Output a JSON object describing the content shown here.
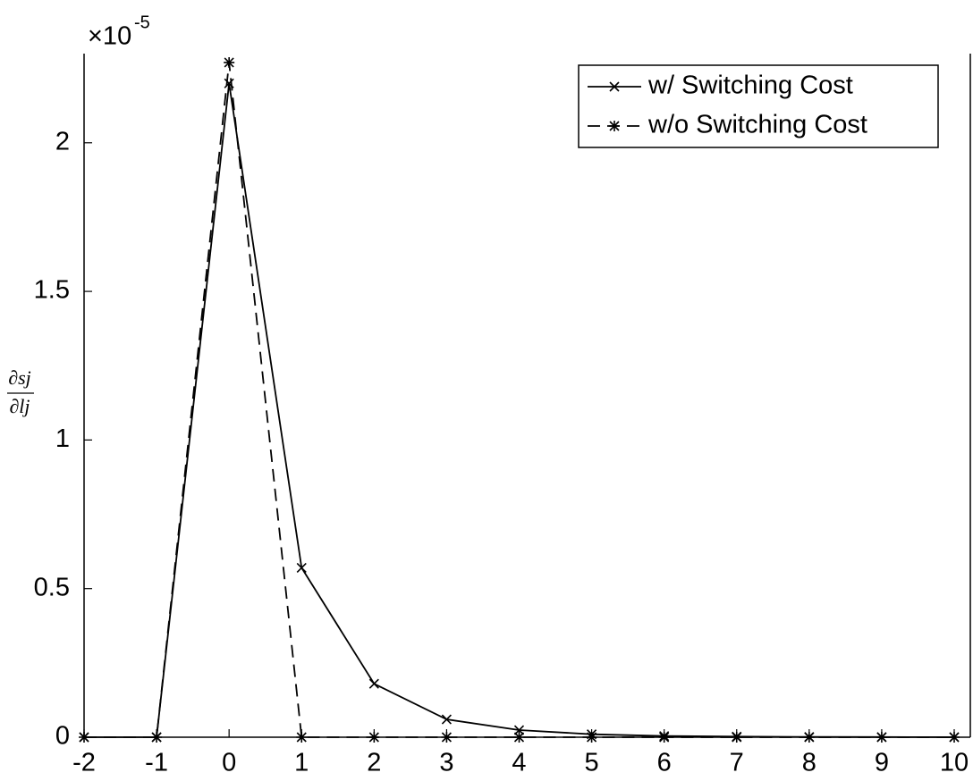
{
  "chart_data": {
    "type": "line",
    "x": [
      -2,
      -1,
      0,
      1,
      2,
      3,
      4,
      5,
      6,
      7,
      8,
      9,
      10
    ],
    "series": [
      {
        "name": "w/ Switching Cost",
        "color": "#000000",
        "dash": "solid",
        "marker": "x",
        "values": [
          0,
          0,
          2.2,
          0.57,
          0.18,
          0.06,
          0.024,
          0.01,
          0.004,
          0.002,
          0.001,
          0.0005,
          0.0002
        ]
      },
      {
        "name": "w/o Switching Cost",
        "color": "#000000",
        "dash": "dashed",
        "marker": "star",
        "values": [
          0,
          0,
          2.27,
          0,
          0,
          0,
          0,
          0,
          0,
          0,
          0,
          0,
          0
        ]
      }
    ],
    "y_label": {
      "numerator": "∂sj",
      "denominator": "∂lj"
    },
    "axis_multiplier": {
      "base": "×10",
      "exponent": "-5"
    },
    "xlim": [
      -2,
      10
    ],
    "ylim": [
      0,
      2.3
    ],
    "xticks": [
      -2,
      -1,
      0,
      1,
      2,
      3,
      4,
      5,
      6,
      7,
      8,
      9,
      10
    ],
    "yticks": [
      0,
      0.5,
      1,
      1.5,
      2
    ],
    "grid": false,
    "legend": "upper right"
  }
}
